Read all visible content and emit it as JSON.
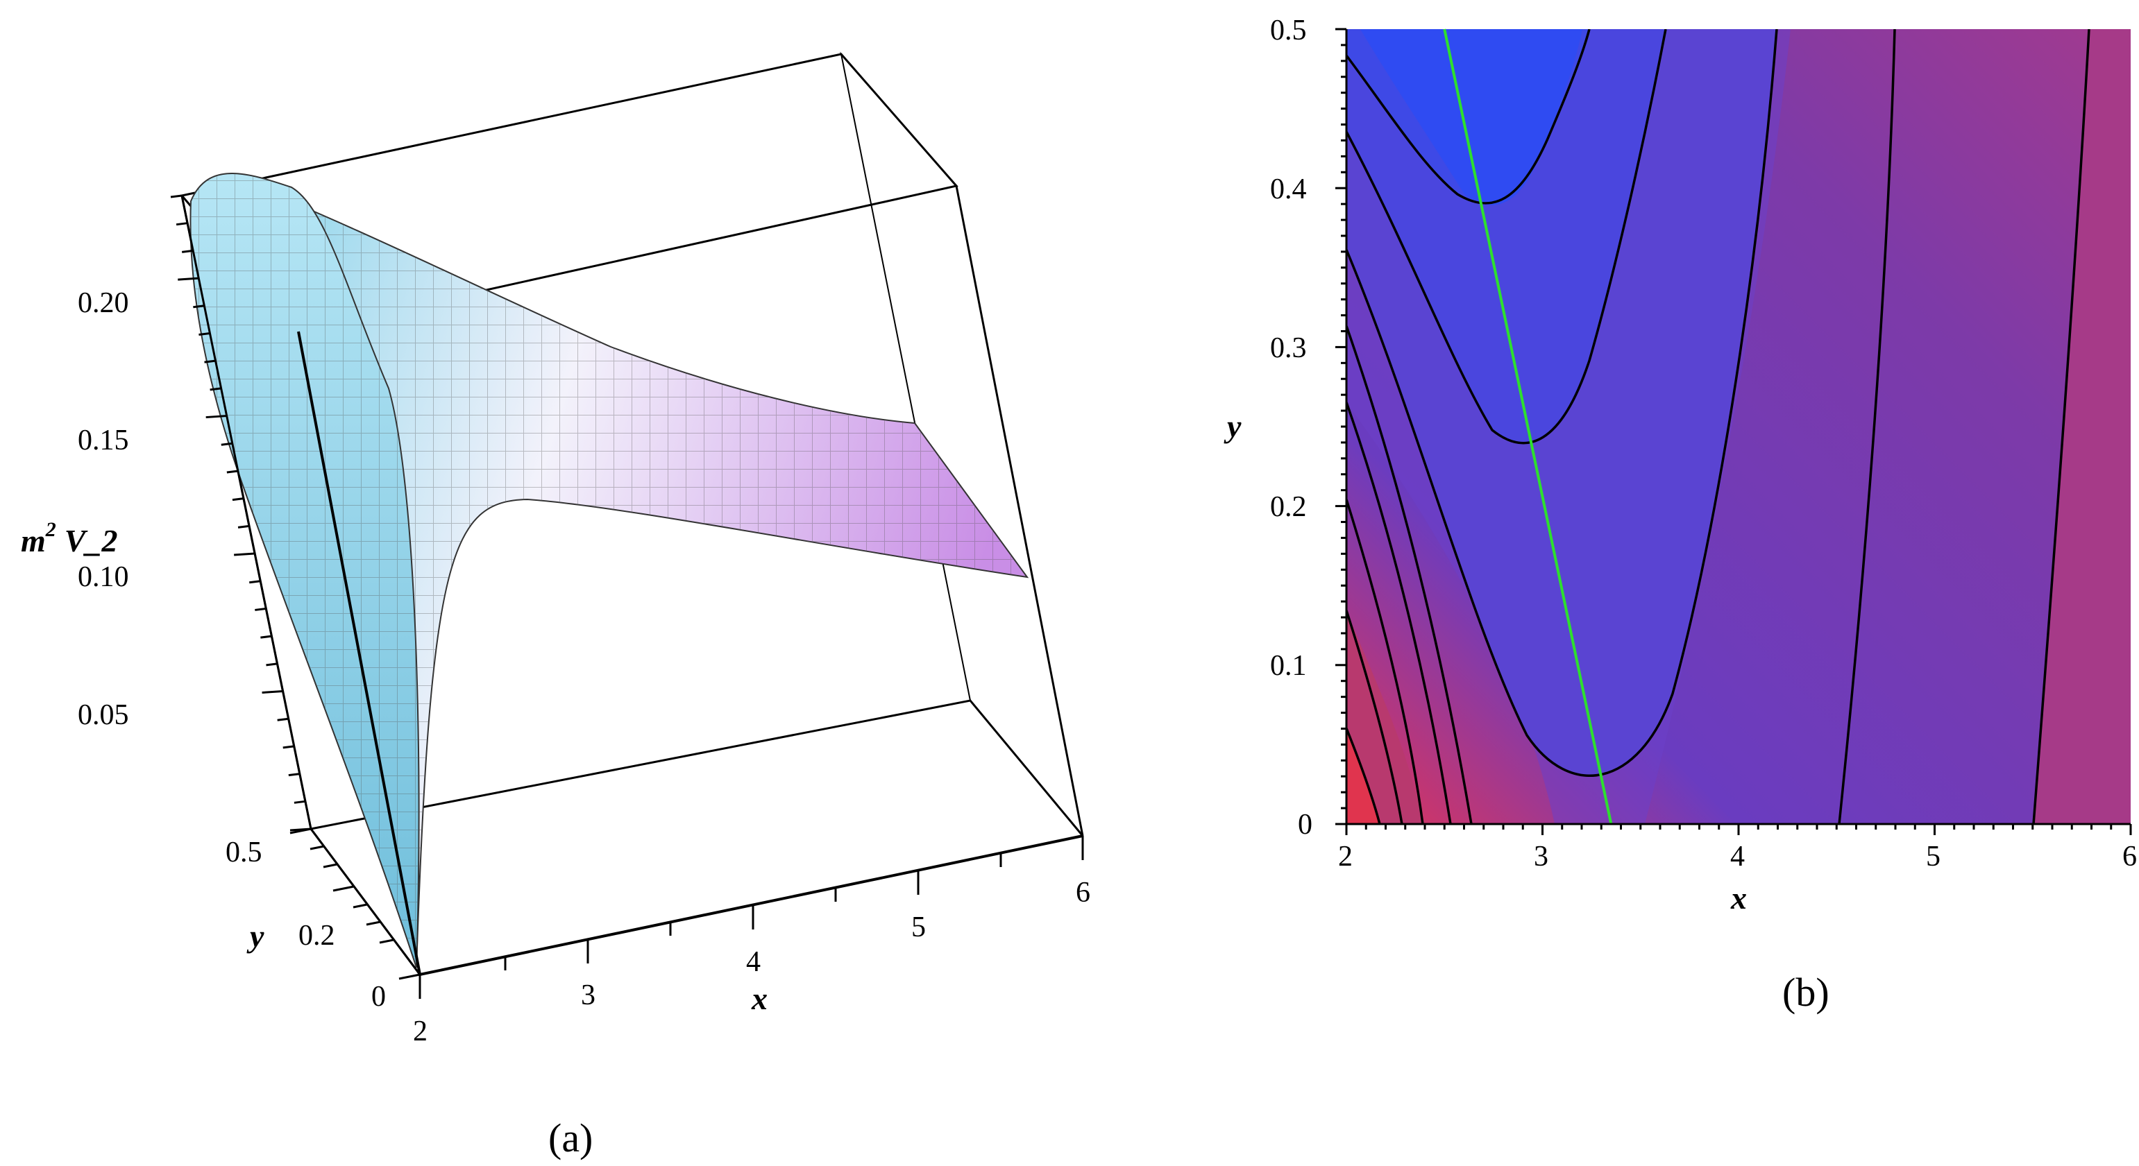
{
  "chart_data": [
    {
      "type": "surface3d",
      "caption": "(a)",
      "zlabel": "m",
      "zlabel_sup": "2",
      "zlabel_rest": "V_2",
      "xlabel": "x",
      "ylabel": "y",
      "x_ticks": [
        "2",
        "3",
        "4",
        "5",
        "6"
      ],
      "y_ticks": [
        "0",
        "0.2",
        "0.5"
      ],
      "z_ticks": [
        "0.05",
        "0.10",
        "0.15",
        "0.20"
      ],
      "xlim": [
        2,
        6
      ],
      "ylim": [
        0,
        0.5
      ],
      "zlim": [
        0,
        0.23
      ],
      "colors": {
        "low": "#8ad3ea",
        "mid": "#f2f2fb",
        "high": "#c98ee6"
      }
    },
    {
      "type": "contour",
      "caption": "(b)",
      "xlabel": "x",
      "ylabel": "y",
      "x_ticks": [
        "2",
        "3",
        "4",
        "5",
        "6"
      ],
      "y_ticks": [
        "0",
        "0.1",
        "0.2",
        "0.3",
        "0.4",
        "0.5"
      ],
      "xlim": [
        2,
        6
      ],
      "ylim": [
        0,
        0.5
      ],
      "valley_line": {
        "color": "#2ee02e",
        "points": [
          [
            2.5,
            0.5
          ],
          [
            3.35,
            0.0
          ]
        ]
      },
      "u_contour_minima": [
        [
          2.65,
          0.39
        ],
        [
          2.92,
          0.235
        ],
        [
          3.25,
          0.025
        ]
      ],
      "colors": {
        "low": "#3048f0",
        "mid": "#7a3caa",
        "high": "#e23456"
      }
    }
  ]
}
